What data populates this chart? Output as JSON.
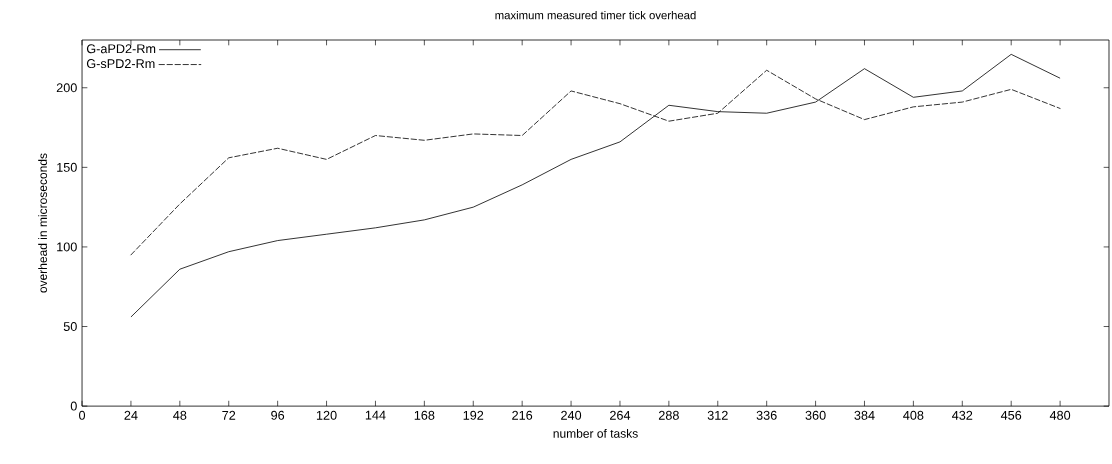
{
  "chart_data": {
    "type": "line",
    "title": "maximum measured timer tick overhead",
    "xlabel": "number of tasks",
    "ylabel": "overhead in microseconds",
    "x": [
      24,
      48,
      72,
      96,
      120,
      144,
      168,
      192,
      216,
      240,
      264,
      288,
      312,
      336,
      360,
      384,
      408,
      432,
      456,
      480
    ],
    "series": [
      {
        "name": "G-aPD2-Rm",
        "color": "#000000",
        "line_style": "solid",
        "values": [
          56,
          86,
          97,
          104,
          108,
          112,
          117,
          125,
          139,
          155,
          166,
          189,
          185,
          184,
          191,
          212,
          194,
          198,
          221,
          206
        ]
      },
      {
        "name": "G-sPD2-Rm",
        "color": "#000000",
        "line_style": "dashed",
        "values": [
          95,
          127,
          156,
          162,
          155,
          170,
          167,
          171,
          170,
          198,
          190,
          179,
          184,
          211,
          193,
          180,
          188,
          191,
          199,
          187
        ]
      }
    ],
    "xlim": [
      0,
      504
    ],
    "ylim": [
      0,
      230
    ],
    "xticks": [
      0,
      24,
      48,
      72,
      96,
      120,
      144,
      168,
      192,
      216,
      240,
      264,
      288,
      312,
      336,
      360,
      384,
      408,
      432,
      456,
      480
    ],
    "yticks": [
      0,
      50,
      100,
      150,
      200
    ],
    "legend": "top left",
    "grid": false,
    "marker": "none"
  }
}
